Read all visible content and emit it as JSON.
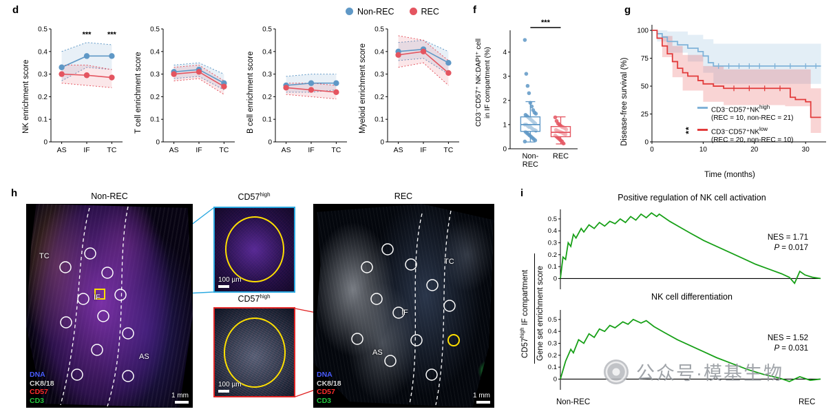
{
  "panels": {
    "d": {
      "label": "d",
      "legend": [
        {
          "label": "Non-REC",
          "color": "#5f98c6"
        },
        {
          "label": "REC",
          "color": "#e45560"
        }
      ]
    },
    "f": {
      "label": "f"
    },
    "g": {
      "label": "g"
    },
    "h": {
      "label": "h",
      "non_rec": {
        "title": "Non-REC",
        "regions": [
          "TC",
          "IF",
          "AS"
        ],
        "scale_bar": "1 mm"
      },
      "rec": {
        "title": "REC",
        "regions": [
          "TC",
          "IF",
          "AS"
        ],
        "scale_bar": "1 mm"
      },
      "inset_top": {
        "title_base": "CD57",
        "title_sup": "high",
        "scale_bar": "100 µm"
      },
      "inset_bottom": {
        "title_base": "CD57",
        "title_sup": "high",
        "scale_bar": "100 µm"
      },
      "channels": [
        {
          "label": "DNA",
          "color": "#4a5cff"
        },
        {
          "label": "CK8/18",
          "color": "#d8d8d8"
        },
        {
          "label": "CD57",
          "color": "#ff2d2d"
        },
        {
          "label": "CD3",
          "color": "#23c93f"
        }
      ]
    },
    "i": {
      "label": "i",
      "x_left": "Non-REC",
      "x_right": "REC",
      "ylabel_numerator_base": "CD57",
      "ylabel_numerator_sup": "high",
      "ylabel_numerator_rest": " IF compartment",
      "ylabel_denominator": "Gene set enrichment score"
    }
  },
  "watermark": {
    "text": "公众号·模基生物"
  },
  "chart_data": [
    {
      "id": "nk-enrichment",
      "type": "line",
      "ylabel": "NK enrichment score",
      "categories": [
        "AS",
        "IF",
        "TC"
      ],
      "ylim": [
        0,
        0.5
      ],
      "yticks": [
        0,
        0.1,
        0.2,
        0.3,
        0.4,
        0.5
      ],
      "series": [
        {
          "name": "Non-REC",
          "color": "#5f98c6",
          "values": [
            0.33,
            0.38,
            0.38
          ],
          "band_upper": [
            0.4,
            0.44,
            0.43
          ],
          "band_lower": [
            0.27,
            0.33,
            0.32
          ]
        },
        {
          "name": "REC",
          "color": "#e45560",
          "values": [
            0.3,
            0.295,
            0.285
          ],
          "band_upper": [
            0.34,
            0.34,
            0.32
          ],
          "band_lower": [
            0.26,
            0.25,
            0.24
          ]
        }
      ],
      "significance": [
        {
          "category": "IF",
          "label": "***",
          "y": 0.465
        },
        {
          "category": "TC",
          "label": "***",
          "y": 0.465
        }
      ]
    },
    {
      "id": "tcell-enrichment",
      "type": "line",
      "ylabel": "T cell enrichment score",
      "categories": [
        "AS",
        "IF",
        "TC"
      ],
      "ylim": [
        0,
        0.5
      ],
      "yticks": [
        0,
        0.1,
        0.2,
        0.3,
        0.4,
        0.5
      ],
      "series": [
        {
          "name": "Non-REC",
          "color": "#5f98c6",
          "values": [
            0.31,
            0.32,
            0.26
          ],
          "band_upper": [
            0.34,
            0.35,
            0.3
          ],
          "band_lower": [
            0.28,
            0.29,
            0.23
          ]
        },
        {
          "name": "REC",
          "color": "#e45560",
          "values": [
            0.3,
            0.31,
            0.245
          ],
          "band_upper": [
            0.33,
            0.34,
            0.27
          ],
          "band_lower": [
            0.27,
            0.28,
            0.21
          ]
        }
      ],
      "significance": []
    },
    {
      "id": "bcell-enrichment",
      "type": "line",
      "ylabel": "B cell enrichment score",
      "categories": [
        "AS",
        "IF",
        "TC"
      ],
      "ylim": [
        0,
        0.5
      ],
      "yticks": [
        0,
        0.1,
        0.2,
        0.3,
        0.4,
        0.5
      ],
      "series": [
        {
          "name": "Non-REC",
          "color": "#5f98c6",
          "values": [
            0.25,
            0.26,
            0.26
          ],
          "band_upper": [
            0.29,
            0.3,
            0.3
          ],
          "band_lower": [
            0.22,
            0.22,
            0.23
          ]
        },
        {
          "name": "REC",
          "color": "#e45560",
          "values": [
            0.24,
            0.23,
            0.22
          ],
          "band_upper": [
            0.26,
            0.26,
            0.25
          ],
          "band_lower": [
            0.21,
            0.2,
            0.19
          ]
        }
      ],
      "significance": []
    },
    {
      "id": "myeloid-enrichment",
      "type": "line",
      "ylabel": "Myeloid enrichment score",
      "categories": [
        "AS",
        "IF",
        "TC"
      ],
      "ylim": [
        0,
        0.5
      ],
      "yticks": [
        0,
        0.1,
        0.2,
        0.3,
        0.4,
        0.5
      ],
      "series": [
        {
          "name": "Non-REC",
          "color": "#5f98c6",
          "values": [
            0.4,
            0.41,
            0.35
          ],
          "band_upper": [
            0.44,
            0.45,
            0.4
          ],
          "band_lower": [
            0.36,
            0.37,
            0.3
          ]
        },
        {
          "name": "REC",
          "color": "#e45560",
          "values": [
            0.385,
            0.4,
            0.305
          ],
          "band_upper": [
            0.47,
            0.45,
            0.36
          ],
          "band_lower": [
            0.33,
            0.35,
            0.25
          ]
        }
      ],
      "significance": []
    },
    {
      "id": "nk-dapi-boxplot",
      "type": "box-scatter",
      "ylabel_line1": "CD3⁻CD57⁺ NK:DAPI⁺ cell",
      "ylabel_line2": "in IF compartment (%)",
      "ylim": [
        0,
        4.9
      ],
      "yticks": [
        0,
        1,
        2,
        3,
        4
      ],
      "significance": "***",
      "groups": [
        {
          "label_lines": [
            "Non-",
            "REC"
          ],
          "color": "#5f98c6",
          "box": {
            "q1": 0.72,
            "median": 1.0,
            "q3": 1.32,
            "whisker_low": 0.28,
            "whisker_high": 1.95
          },
          "points": [
            4.5,
            3.1,
            2.6,
            2.3,
            1.9,
            1.75,
            1.6,
            1.5,
            1.45,
            1.4,
            1.35,
            1.3,
            1.25,
            1.2,
            1.15,
            1.1,
            1.05,
            1.0,
            1.0,
            0.95,
            0.9,
            0.9,
            0.85,
            0.8,
            0.78,
            0.75,
            0.7,
            0.65,
            0.6,
            0.55,
            0.5,
            0.45,
            0.4,
            0.35,
            0.3
          ]
        },
        {
          "label_lines": [
            "REC"
          ],
          "color": "#e45560",
          "box": {
            "q1": 0.5,
            "median": 0.68,
            "q3": 0.92,
            "whisker_low": 0.2,
            "whisker_high": 1.32
          },
          "points": [
            1.3,
            1.15,
            1.05,
            1.0,
            0.95,
            0.9,
            0.88,
            0.85,
            0.8,
            0.78,
            0.75,
            0.72,
            0.7,
            0.68,
            0.65,
            0.62,
            0.6,
            0.55,
            0.5,
            0.45,
            0.4,
            0.35,
            0.3,
            0.22
          ]
        }
      ]
    },
    {
      "id": "km-survival",
      "type": "km",
      "ylabel": "Disease-free survival (%)",
      "xlabel": "Time (months)",
      "xlim": [
        0,
        34
      ],
      "xticks": [
        0,
        10,
        20,
        30
      ],
      "ylim": [
        0,
        105
      ],
      "yticks": [
        0,
        25,
        50,
        75,
        100
      ],
      "significance": "**",
      "series": [
        {
          "name_base": "CD3⁻CD57⁺NK",
          "name_sup": "high",
          "counts": "(REC = 10, non-REC = 21)",
          "color": "#7fb2d8",
          "steps": [
            [
              0,
              100
            ],
            [
              1,
              97
            ],
            [
              2,
              94
            ],
            [
              3,
              90
            ],
            [
              5,
              87
            ],
            [
              7,
              84
            ],
            [
              9,
              81
            ],
            [
              10,
              77
            ],
            [
              11,
              71
            ],
            [
              12,
              68
            ],
            [
              33,
              68
            ]
          ],
          "band_upper": [
            [
              0,
              100
            ],
            [
              1,
              100
            ],
            [
              3,
              99
            ],
            [
              7,
              96
            ],
            [
              10,
              92
            ],
            [
              12,
              88
            ],
            [
              33,
              88
            ]
          ],
          "band_lower": [
            [
              0,
              100
            ],
            [
              1,
              90
            ],
            [
              3,
              80
            ],
            [
              7,
              72
            ],
            [
              10,
              62
            ],
            [
              12,
              52
            ],
            [
              33,
              52
            ]
          ],
          "censors": [
            [
              13,
              68
            ],
            [
              15,
              68
            ],
            [
              17,
              68
            ],
            [
              19,
              68
            ],
            [
              21,
              68
            ],
            [
              24,
              68
            ],
            [
              27,
              68
            ],
            [
              30,
              68
            ],
            [
              32,
              68
            ]
          ]
        },
        {
          "name_base": "CD3⁻CD57⁺NK",
          "name_sup": "low",
          "counts": "(REC = 20, non-REC = 10)",
          "color": "#e23b3b",
          "steps": [
            [
              0,
              100
            ],
            [
              1,
              93
            ],
            [
              2,
              86
            ],
            [
              3,
              79
            ],
            [
              4,
              72
            ],
            [
              5,
              66
            ],
            [
              6,
              62
            ],
            [
              7,
              59
            ],
            [
              9,
              55
            ],
            [
              10,
              52
            ],
            [
              12,
              50
            ],
            [
              14,
              48
            ],
            [
              26,
              48
            ],
            [
              27,
              40
            ],
            [
              28,
              38
            ],
            [
              30,
              36
            ],
            [
              31,
              22
            ],
            [
              33,
              22
            ]
          ],
          "band_upper": [
            [
              0,
              100
            ],
            [
              2,
              95
            ],
            [
              4,
              86
            ],
            [
              6,
              78
            ],
            [
              10,
              68
            ],
            [
              14,
              65
            ],
            [
              26,
              65
            ],
            [
              31,
              48
            ],
            [
              33,
              48
            ]
          ],
          "band_lower": [
            [
              0,
              100
            ],
            [
              2,
              76
            ],
            [
              4,
              58
            ],
            [
              6,
              46
            ],
            [
              10,
              36
            ],
            [
              14,
              33
            ],
            [
              26,
              32
            ],
            [
              31,
              8
            ],
            [
              33,
              8
            ]
          ],
          "censors": [
            [
              16,
              48
            ],
            [
              19,
              48
            ],
            [
              22,
              48
            ],
            [
              25,
              48
            ]
          ]
        }
      ]
    },
    {
      "id": "gsea-nk-activation",
      "type": "gsea",
      "title": "Positive regulation of NK cell activation",
      "nes": "NES = 1.71",
      "p_prefix": "P",
      "p_rest": " = 0.017",
      "color": "#17a017",
      "ylim": [
        -0.09,
        0.58
      ],
      "yticks": [
        0,
        0.1,
        0.2,
        0.3,
        0.4,
        0.5
      ],
      "points": [
        [
          0,
          0
        ],
        [
          0.01,
          0.18
        ],
        [
          0.02,
          0.16
        ],
        [
          0.03,
          0.3
        ],
        [
          0.04,
          0.27
        ],
        [
          0.05,
          0.37
        ],
        [
          0.06,
          0.34
        ],
        [
          0.08,
          0.42
        ],
        [
          0.09,
          0.39
        ],
        [
          0.11,
          0.45
        ],
        [
          0.13,
          0.42
        ],
        [
          0.15,
          0.47
        ],
        [
          0.17,
          0.44
        ],
        [
          0.19,
          0.48
        ],
        [
          0.21,
          0.46
        ],
        [
          0.23,
          0.5
        ],
        [
          0.25,
          0.47
        ],
        [
          0.27,
          0.52
        ],
        [
          0.29,
          0.49
        ],
        [
          0.31,
          0.54
        ],
        [
          0.33,
          0.51
        ],
        [
          0.35,
          0.55
        ],
        [
          0.37,
          0.52
        ],
        [
          0.38,
          0.54
        ],
        [
          0.42,
          0.48
        ],
        [
          0.46,
          0.43
        ],
        [
          0.5,
          0.38
        ],
        [
          0.55,
          0.32
        ],
        [
          0.6,
          0.27
        ],
        [
          0.65,
          0.22
        ],
        [
          0.7,
          0.17
        ],
        [
          0.75,
          0.12
        ],
        [
          0.8,
          0.08
        ],
        [
          0.85,
          0.04
        ],
        [
          0.88,
          0.01
        ],
        [
          0.9,
          -0.04
        ],
        [
          0.92,
          0.06
        ],
        [
          0.94,
          0.03
        ],
        [
          0.97,
          0.01
        ],
        [
          1,
          0
        ]
      ]
    },
    {
      "id": "gsea-nk-differentiation",
      "type": "gsea",
      "title": "NK cell differentiation",
      "nes": "NES = 1.52",
      "p_prefix": "P",
      "p_rest": " = 0.031",
      "color": "#17a017",
      "ylim": [
        -0.09,
        0.58
      ],
      "yticks": [
        0,
        0.1,
        0.2,
        0.3,
        0.4,
        0.5
      ],
      "points": [
        [
          0,
          0
        ],
        [
          0.02,
          0.15
        ],
        [
          0.04,
          0.25
        ],
        [
          0.05,
          0.22
        ],
        [
          0.07,
          0.33
        ],
        [
          0.09,
          0.3
        ],
        [
          0.11,
          0.38
        ],
        [
          0.13,
          0.35
        ],
        [
          0.15,
          0.42
        ],
        [
          0.17,
          0.4
        ],
        [
          0.19,
          0.45
        ],
        [
          0.21,
          0.43
        ],
        [
          0.24,
          0.48
        ],
        [
          0.26,
          0.46
        ],
        [
          0.28,
          0.5
        ],
        [
          0.31,
          0.47
        ],
        [
          0.33,
          0.49
        ],
        [
          0.36,
          0.44
        ],
        [
          0.4,
          0.39
        ],
        [
          0.45,
          0.33
        ],
        [
          0.5,
          0.28
        ],
        [
          0.55,
          0.23
        ],
        [
          0.6,
          0.18
        ],
        [
          0.66,
          0.13
        ],
        [
          0.72,
          0.08
        ],
        [
          0.78,
          0.04
        ],
        [
          0.84,
          0.01
        ],
        [
          0.88,
          -0.02
        ],
        [
          0.92,
          0.02
        ],
        [
          0.96,
          -0.01
        ],
        [
          1,
          0
        ]
      ]
    }
  ]
}
